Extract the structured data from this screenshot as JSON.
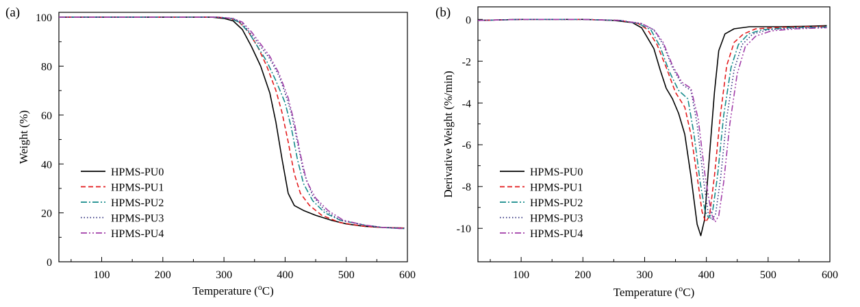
{
  "chart_data": [
    {
      "type": "line",
      "panel_label": "(a)",
      "xlabel": "Temperature (",
      "xlabel_degree": "o",
      "xlabel_unit": "C)",
      "ylabel": "Weight (%)",
      "xlim": [
        30,
        600
      ],
      "ylim": [
        0,
        102
      ],
      "xticks": [
        100,
        200,
        300,
        400,
        500,
        600
      ],
      "yticks": [
        0,
        20,
        40,
        60,
        80,
        100
      ],
      "grid": false,
      "legend_position": "bottom-left",
      "series": [
        {
          "name": "HPMS-PU0",
          "color": "#000000",
          "dash": "solid",
          "points": [
            [
              30,
              100
            ],
            [
              200,
              100
            ],
            [
              280,
              100
            ],
            [
              300,
              99.5
            ],
            [
              315,
              98.5
            ],
            [
              330,
              95
            ],
            [
              345,
              88
            ],
            [
              360,
              80
            ],
            [
              375,
              69
            ],
            [
              385,
              57
            ],
            [
              395,
              42
            ],
            [
              405,
              28
            ],
            [
              415,
              23
            ],
            [
              430,
              21
            ],
            [
              450,
              19
            ],
            [
              475,
              17
            ],
            [
              500,
              15.5
            ],
            [
              530,
              14.5
            ],
            [
              560,
              14
            ],
            [
              595,
              13.8
            ]
          ]
        },
        {
          "name": "HPMS-PU1",
          "color": "#e31a1c",
          "dash": "dashed",
          "points": [
            [
              30,
              100
            ],
            [
              200,
              100
            ],
            [
              290,
              100
            ],
            [
              310,
              99.5
            ],
            [
              325,
              98
            ],
            [
              340,
              94
            ],
            [
              355,
              88
            ],
            [
              370,
              80
            ],
            [
              385,
              70
            ],
            [
              395,
              61
            ],
            [
              405,
              49
            ],
            [
              415,
              36
            ],
            [
              425,
              28
            ],
            [
              440,
              23
            ],
            [
              460,
              19
            ],
            [
              490,
              16
            ],
            [
              530,
              14.5
            ],
            [
              560,
              14
            ],
            [
              595,
              13.8
            ]
          ]
        },
        {
          "name": "HPMS-PU2",
          "color": "#138a8a",
          "dash": "dashdot",
          "points": [
            [
              30,
              100
            ],
            [
              200,
              100
            ],
            [
              290,
              100
            ],
            [
              310,
              99.5
            ],
            [
              325,
              98
            ],
            [
              340,
              94
            ],
            [
              355,
              88
            ],
            [
              370,
              82
            ],
            [
              385,
              74
            ],
            [
              400,
              65
            ],
            [
              410,
              55
            ],
            [
              420,
              42
            ],
            [
              430,
              32
            ],
            [
              445,
              25
            ],
            [
              465,
              20
            ],
            [
              490,
              17
            ],
            [
              530,
              15
            ],
            [
              560,
              14
            ],
            [
              595,
              13.5
            ]
          ]
        },
        {
          "name": "HPMS-PU3",
          "color": "#2a2a7a",
          "dash": "dotted",
          "points": [
            [
              30,
              100
            ],
            [
              200,
              100
            ],
            [
              290,
              100
            ],
            [
              315,
              99.5
            ],
            [
              330,
              97.5
            ],
            [
              345,
              93
            ],
            [
              360,
              88
            ],
            [
              375,
              83
            ],
            [
              390,
              76
            ],
            [
              400,
              69
            ],
            [
              410,
              61
            ],
            [
              420,
              49
            ],
            [
              430,
              37
            ],
            [
              445,
              27
            ],
            [
              465,
              21
            ],
            [
              490,
              17
            ],
            [
              530,
              15
            ],
            [
              560,
              14
            ],
            [
              595,
              13.8
            ]
          ]
        },
        {
          "name": "HPMS-PU4",
          "color": "#a03ca8",
          "dash": "dashdotdot",
          "points": [
            [
              30,
              100
            ],
            [
              200,
              100
            ],
            [
              290,
              100
            ],
            [
              315,
              99.5
            ],
            [
              330,
              98
            ],
            [
              345,
              94
            ],
            [
              360,
              89
            ],
            [
              375,
              84
            ],
            [
              390,
              77
            ],
            [
              405,
              67
            ],
            [
              415,
              57
            ],
            [
              425,
              44
            ],
            [
              435,
              33
            ],
            [
              450,
              26
            ],
            [
              470,
              21
            ],
            [
              495,
              17
            ],
            [
              530,
              15
            ],
            [
              560,
              14
            ],
            [
              595,
              13.5
            ]
          ]
        }
      ]
    },
    {
      "type": "line",
      "panel_label": "(b)",
      "xlabel": "Temperature (",
      "xlabel_degree": "o",
      "xlabel_unit": "C)",
      "ylabel": "Derivative Weight (%/min)",
      "xlim": [
        30,
        600
      ],
      "ylim": [
        -11.6,
        0.6
      ],
      "xticks": [
        100,
        200,
        300,
        400,
        500,
        600
      ],
      "yticks": [
        0,
        -2,
        -4,
        -6,
        -8,
        -10
      ],
      "grid": false,
      "legend_position": "bottom-left",
      "series": [
        {
          "name": "HPMS-PU0",
          "color": "#000000",
          "dash": "solid",
          "points": [
            [
              30,
              -0.05
            ],
            [
              100,
              0
            ],
            [
              200,
              0
            ],
            [
              250,
              -0.05
            ],
            [
              280,
              -0.15
            ],
            [
              295,
              -0.4
            ],
            [
              305,
              -0.9
            ],
            [
              315,
              -1.4
            ],
            [
              325,
              -2.4
            ],
            [
              335,
              -3.3
            ],
            [
              345,
              -3.8
            ],
            [
              355,
              -4.5
            ],
            [
              365,
              -5.5
            ],
            [
              375,
              -7.5
            ],
            [
              385,
              -9.8
            ],
            [
              391,
              -10.35
            ],
            [
              397,
              -9.6
            ],
            [
              405,
              -6.5
            ],
            [
              413,
              -3.5
            ],
            [
              420,
              -1.5
            ],
            [
              430,
              -0.7
            ],
            [
              445,
              -0.45
            ],
            [
              470,
              -0.35
            ],
            [
              520,
              -0.35
            ],
            [
              560,
              -0.33
            ],
            [
              595,
              -0.3
            ]
          ]
        },
        {
          "name": "HPMS-PU1",
          "color": "#e31a1c",
          "dash": "dashed",
          "points": [
            [
              30,
              -0.05
            ],
            [
              100,
              0
            ],
            [
              200,
              0
            ],
            [
              260,
              -0.05
            ],
            [
              290,
              -0.2
            ],
            [
              305,
              -0.5
            ],
            [
              320,
              -1.2
            ],
            [
              335,
              -2.3
            ],
            [
              350,
              -3.5
            ],
            [
              365,
              -4.2
            ],
            [
              375,
              -5.5
            ],
            [
              385,
              -7.5
            ],
            [
              393,
              -9.2
            ],
            [
              399,
              -9.7
            ],
            [
              405,
              -9.4
            ],
            [
              413,
              -7.5
            ],
            [
              423,
              -4.5
            ],
            [
              433,
              -2.2
            ],
            [
              445,
              -1.1
            ],
            [
              460,
              -0.7
            ],
            [
              480,
              -0.45
            ],
            [
              520,
              -0.38
            ],
            [
              560,
              -0.35
            ],
            [
              595,
              -0.33
            ]
          ]
        },
        {
          "name": "HPMS-PU2",
          "color": "#138a8a",
          "dash": "dashdot",
          "points": [
            [
              30,
              -0.05
            ],
            [
              100,
              0
            ],
            [
              200,
              0
            ],
            [
              260,
              -0.05
            ],
            [
              290,
              -0.2
            ],
            [
              310,
              -0.5
            ],
            [
              325,
              -1.3
            ],
            [
              340,
              -2.5
            ],
            [
              355,
              -3.4
            ],
            [
              370,
              -3.8
            ],
            [
              380,
              -5.5
            ],
            [
              390,
              -7.8
            ],
            [
              398,
              -9.2
            ],
            [
              404,
              -9.5
            ],
            [
              410,
              -9.2
            ],
            [
              418,
              -7.5
            ],
            [
              428,
              -4.6
            ],
            [
              440,
              -2.3
            ],
            [
              452,
              -1.2
            ],
            [
              468,
              -0.7
            ],
            [
              490,
              -0.5
            ],
            [
              530,
              -0.4
            ],
            [
              560,
              -0.38
            ],
            [
              595,
              -0.36
            ]
          ]
        },
        {
          "name": "HPMS-PU3",
          "color": "#2a2a7a",
          "dash": "dotted",
          "points": [
            [
              30,
              -0.05
            ],
            [
              100,
              0
            ],
            [
              200,
              0
            ],
            [
              260,
              -0.05
            ],
            [
              295,
              -0.2
            ],
            [
              315,
              -0.5
            ],
            [
              330,
              -1.2
            ],
            [
              345,
              -2.3
            ],
            [
              360,
              -3.1
            ],
            [
              375,
              -3.4
            ],
            [
              385,
              -5.0
            ],
            [
              395,
              -7.6
            ],
            [
              403,
              -9.3
            ],
            [
              409,
              -9.6
            ],
            [
              415,
              -9.3
            ],
            [
              423,
              -7.6
            ],
            [
              433,
              -4.7
            ],
            [
              445,
              -2.4
            ],
            [
              458,
              -1.2
            ],
            [
              475,
              -0.7
            ],
            [
              500,
              -0.5
            ],
            [
              540,
              -0.42
            ],
            [
              570,
              -0.4
            ],
            [
              595,
              -0.38
            ]
          ]
        },
        {
          "name": "HPMS-PU4",
          "color": "#a03ca8",
          "dash": "dashdotdot",
          "points": [
            [
              30,
              -0.05
            ],
            [
              100,
              0
            ],
            [
              200,
              0
            ],
            [
              260,
              -0.05
            ],
            [
              295,
              -0.2
            ],
            [
              315,
              -0.5
            ],
            [
              330,
              -1.1
            ],
            [
              345,
              -2.2
            ],
            [
              360,
              -3.0
            ],
            [
              375,
              -3.3
            ],
            [
              387,
              -4.8
            ],
            [
              398,
              -7.5
            ],
            [
              408,
              -9.3
            ],
            [
              414,
              -9.7
            ],
            [
              420,
              -9.4
            ],
            [
              428,
              -7.8
            ],
            [
              438,
              -5.0
            ],
            [
              450,
              -2.6
            ],
            [
              463,
              -1.3
            ],
            [
              480,
              -0.8
            ],
            [
              505,
              -0.55
            ],
            [
              545,
              -0.45
            ],
            [
              575,
              -0.42
            ],
            [
              595,
              -0.4
            ]
          ]
        }
      ]
    }
  ]
}
